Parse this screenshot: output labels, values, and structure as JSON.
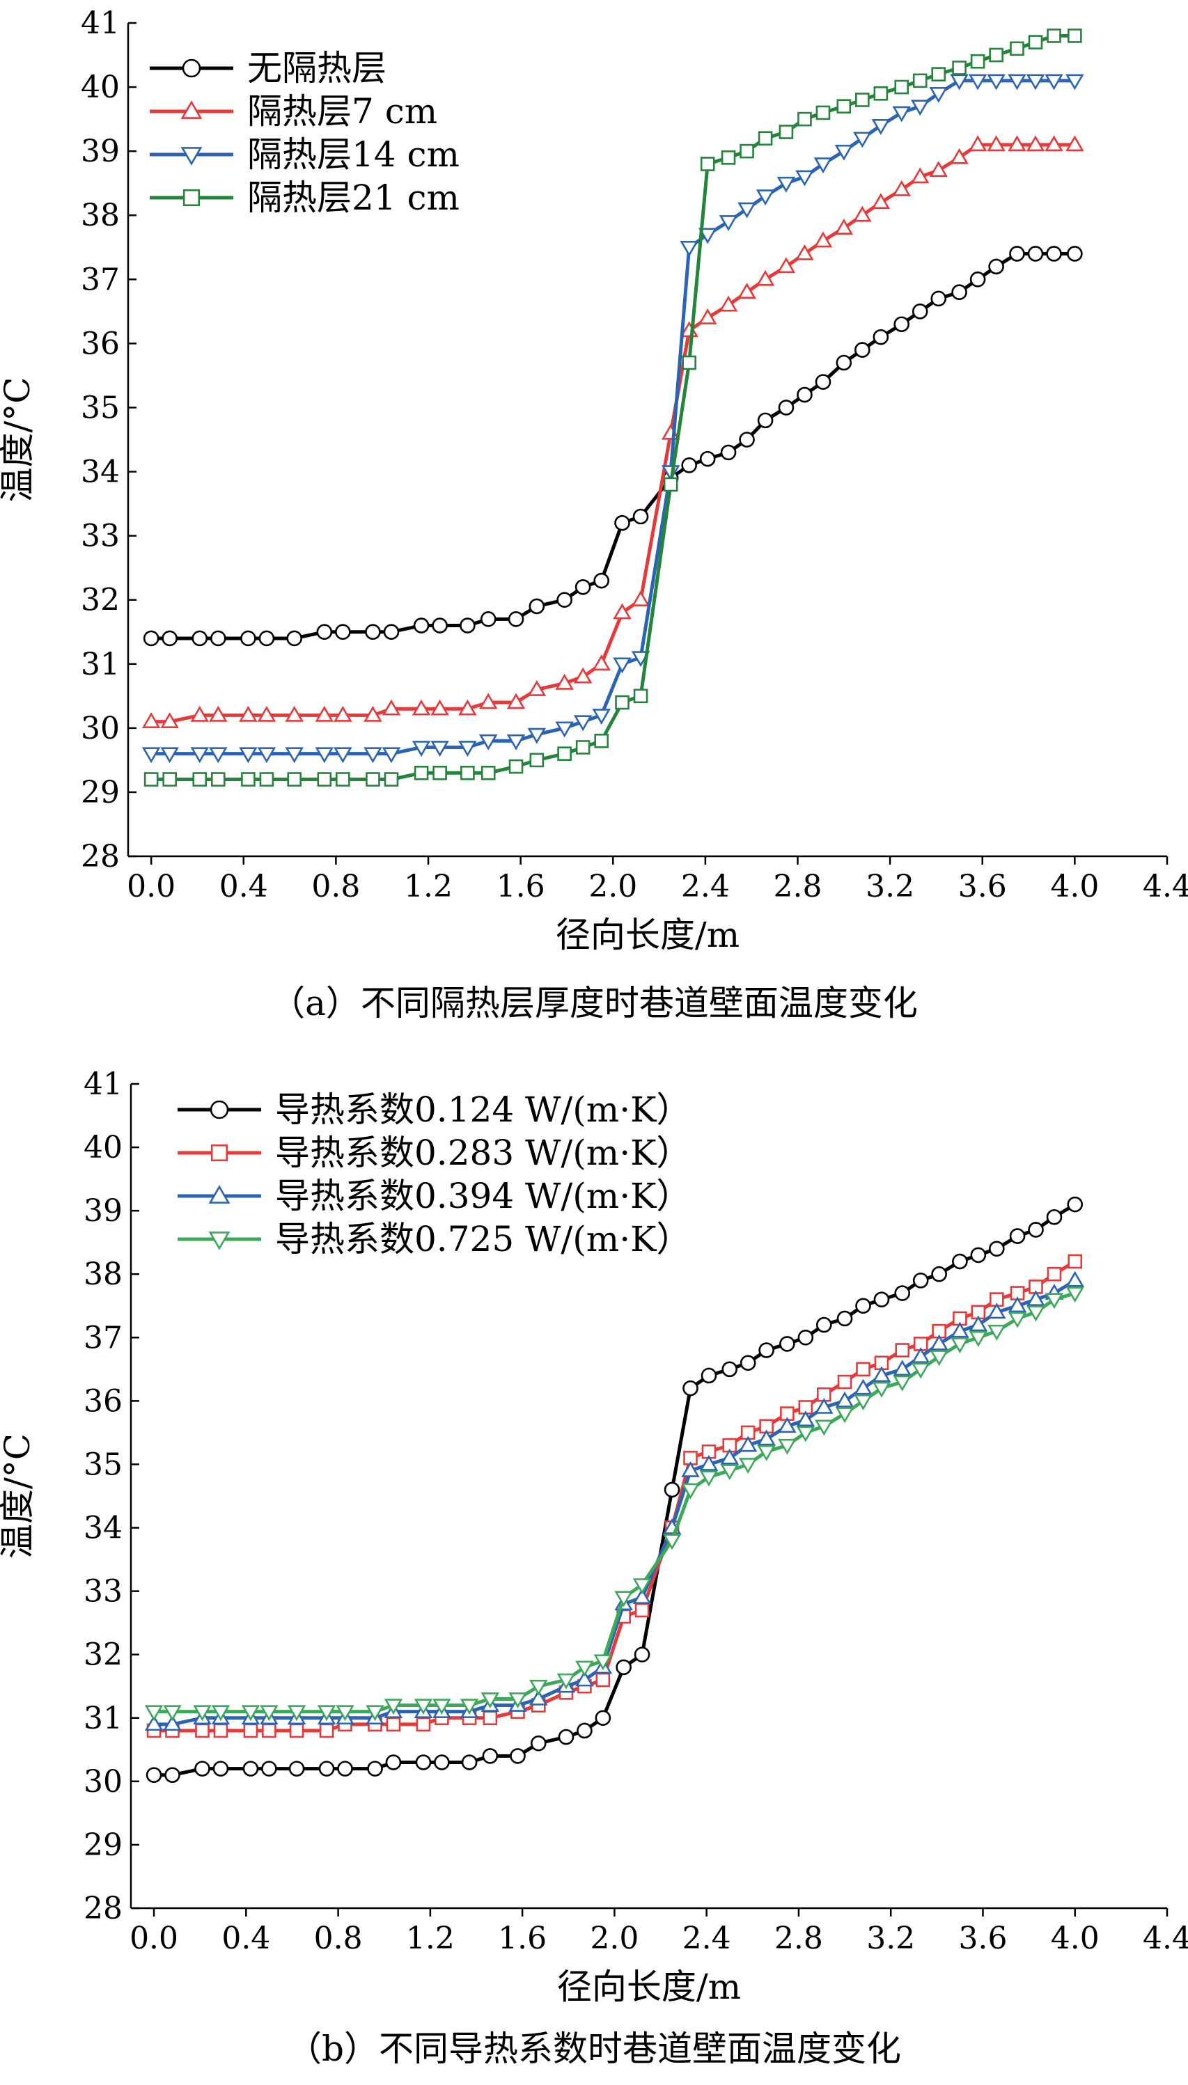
{
  "chart_data": [
    {
      "type": "line",
      "caption": "（a）不同隔热层厚度时巷道壁面温度变化",
      "xlabel": "径向长度/m",
      "ylabel": "温度/°C",
      "xlim": [
        -0.1,
        4.4
      ],
      "ylim": [
        28,
        41
      ],
      "xticks": [
        "0.0",
        "0.4",
        "0.8",
        "1.2",
        "1.6",
        "2.0",
        "2.4",
        "2.8",
        "3.2",
        "3.6",
        "4.0",
        "4.4"
      ],
      "yticks": [
        "28",
        "29",
        "30",
        "31",
        "32",
        "33",
        "34",
        "35",
        "36",
        "37",
        "38",
        "39",
        "40",
        "41"
      ],
      "legend_position": "top-left",
      "series": [
        {
          "name": "无隔热层",
          "color": "#000000",
          "marker": "circle",
          "x": [
            0.0,
            0.08,
            0.21,
            0.29,
            0.42,
            0.5,
            0.62,
            0.75,
            0.83,
            0.96,
            1.04,
            1.17,
            1.25,
            1.37,
            1.46,
            1.58,
            1.67,
            1.79,
            1.87,
            1.95,
            2.04,
            2.12,
            2.25,
            2.33,
            2.41,
            2.5,
            2.58,
            2.66,
            2.75,
            2.83,
            2.91,
            3.0,
            3.08,
            3.16,
            3.25,
            3.33,
            3.41,
            3.5,
            3.58,
            3.66,
            3.75,
            3.83,
            3.91,
            4.0
          ],
          "y": [
            31.4,
            31.4,
            31.4,
            31.4,
            31.4,
            31.4,
            31.4,
            31.5,
            31.5,
            31.5,
            31.5,
            31.6,
            31.6,
            31.6,
            31.7,
            31.7,
            31.9,
            32.0,
            32.2,
            32.3,
            33.2,
            33.3,
            33.9,
            34.1,
            34.2,
            34.3,
            34.5,
            34.8,
            35.0,
            35.2,
            35.4,
            35.7,
            35.9,
            36.1,
            36.3,
            36.5,
            36.7,
            36.8,
            37.0,
            37.2,
            37.4,
            37.4,
            37.4,
            37.4
          ]
        },
        {
          "name": "隔热层7 cm",
          "color": "#e53a3a",
          "marker": "triangle-up",
          "x": [
            0.0,
            0.08,
            0.21,
            0.29,
            0.42,
            0.5,
            0.62,
            0.75,
            0.83,
            0.96,
            1.04,
            1.17,
            1.25,
            1.37,
            1.46,
            1.58,
            1.67,
            1.79,
            1.87,
            1.95,
            2.04,
            2.12,
            2.25,
            2.33,
            2.41,
            2.5,
            2.58,
            2.66,
            2.75,
            2.83,
            2.91,
            3.0,
            3.08,
            3.16,
            3.25,
            3.33,
            3.41,
            3.5,
            3.58,
            3.66,
            3.75,
            3.83,
            3.91,
            4.0
          ],
          "y": [
            30.1,
            30.1,
            30.2,
            30.2,
            30.2,
            30.2,
            30.2,
            30.2,
            30.2,
            30.2,
            30.3,
            30.3,
            30.3,
            30.3,
            30.4,
            30.4,
            30.6,
            30.7,
            30.8,
            31.0,
            31.8,
            32.0,
            34.6,
            36.2,
            36.4,
            36.6,
            36.8,
            37.0,
            37.2,
            37.4,
            37.6,
            37.8,
            38.0,
            38.2,
            38.4,
            38.6,
            38.7,
            38.9,
            39.1,
            39.1,
            39.1,
            39.1,
            39.1,
            39.1
          ]
        },
        {
          "name": "隔热层14 cm",
          "color": "#2c64b4",
          "marker": "triangle-down",
          "x": [
            0.0,
            0.08,
            0.21,
            0.29,
            0.42,
            0.5,
            0.62,
            0.75,
            0.83,
            0.96,
            1.04,
            1.17,
            1.25,
            1.37,
            1.46,
            1.58,
            1.67,
            1.79,
            1.87,
            1.95,
            2.04,
            2.12,
            2.25,
            2.33,
            2.41,
            2.5,
            2.58,
            2.66,
            2.75,
            2.83,
            2.91,
            3.0,
            3.08,
            3.16,
            3.25,
            3.33,
            3.41,
            3.5,
            3.58,
            3.66,
            3.75,
            3.83,
            3.91,
            4.0
          ],
          "y": [
            29.6,
            29.6,
            29.6,
            29.6,
            29.6,
            29.6,
            29.6,
            29.6,
            29.6,
            29.6,
            29.6,
            29.7,
            29.7,
            29.7,
            29.8,
            29.8,
            29.9,
            30.0,
            30.1,
            30.2,
            31.0,
            31.1,
            34.0,
            37.5,
            37.7,
            37.9,
            38.1,
            38.3,
            38.5,
            38.6,
            38.8,
            39.0,
            39.2,
            39.4,
            39.6,
            39.7,
            39.9,
            40.1,
            40.1,
            40.1,
            40.1,
            40.1,
            40.1,
            40.1
          ]
        },
        {
          "name": "隔热层21 cm",
          "color": "#24843c",
          "marker": "square",
          "x": [
            0.0,
            0.08,
            0.21,
            0.29,
            0.42,
            0.5,
            0.62,
            0.75,
            0.83,
            0.96,
            1.04,
            1.17,
            1.25,
            1.37,
            1.46,
            1.58,
            1.67,
            1.79,
            1.87,
            1.95,
            2.04,
            2.12,
            2.25,
            2.33,
            2.41,
            2.5,
            2.58,
            2.66,
            2.75,
            2.83,
            2.91,
            3.0,
            3.08,
            3.16,
            3.25,
            3.33,
            3.41,
            3.5,
            3.58,
            3.66,
            3.75,
            3.83,
            3.91,
            4.0
          ],
          "y": [
            29.2,
            29.2,
            29.2,
            29.2,
            29.2,
            29.2,
            29.2,
            29.2,
            29.2,
            29.2,
            29.2,
            29.3,
            29.3,
            29.3,
            29.3,
            29.4,
            29.5,
            29.6,
            29.7,
            29.8,
            30.4,
            30.5,
            33.8,
            35.7,
            38.8,
            38.9,
            39.0,
            39.2,
            39.3,
            39.5,
            39.6,
            39.7,
            39.8,
            39.9,
            40.0,
            40.1,
            40.2,
            40.3,
            40.4,
            40.5,
            40.6,
            40.7,
            40.8,
            40.8
          ]
        }
      ]
    },
    {
      "type": "line",
      "caption": "（b）不同导热系数时巷道壁面温度变化",
      "xlabel": "径向长度/m",
      "ylabel": "温度/°C",
      "xlim": [
        -0.1,
        4.4
      ],
      "ylim": [
        28,
        41
      ],
      "xticks": [
        "0.0",
        "0.4",
        "0.8",
        "1.2",
        "1.6",
        "2.0",
        "2.4",
        "2.8",
        "3.2",
        "3.6",
        "4.0",
        "4.4"
      ],
      "yticks": [
        "28",
        "29",
        "30",
        "31",
        "32",
        "33",
        "34",
        "35",
        "36",
        "37",
        "38",
        "39",
        "40",
        "41"
      ],
      "legend_position": "top-left",
      "series": [
        {
          "name": "导热系数0.124 W/(m·K）",
          "color": "#000000",
          "marker": "circle",
          "x": [
            0.0,
            0.08,
            0.21,
            0.29,
            0.42,
            0.5,
            0.62,
            0.75,
            0.83,
            0.96,
            1.04,
            1.17,
            1.25,
            1.37,
            1.46,
            1.58,
            1.67,
            1.79,
            1.87,
            1.95,
            2.04,
            2.12,
            2.25,
            2.33,
            2.41,
            2.5,
            2.58,
            2.66,
            2.75,
            2.83,
            2.91,
            3.0,
            3.08,
            3.16,
            3.25,
            3.33,
            3.41,
            3.5,
            3.58,
            3.66,
            3.75,
            3.83,
            3.91,
            4.0
          ],
          "y": [
            30.1,
            30.1,
            30.2,
            30.2,
            30.2,
            30.2,
            30.2,
            30.2,
            30.2,
            30.2,
            30.3,
            30.3,
            30.3,
            30.3,
            30.4,
            30.4,
            30.6,
            30.7,
            30.8,
            31.0,
            31.8,
            32.0,
            34.6,
            36.2,
            36.4,
            36.5,
            36.6,
            36.8,
            36.9,
            37.0,
            37.2,
            37.3,
            37.5,
            37.6,
            37.7,
            37.9,
            38.0,
            38.2,
            38.3,
            38.4,
            38.6,
            38.7,
            38.9,
            39.1
          ]
        },
        {
          "name": "导热系数0.283 W/(m·K）",
          "color": "#e53a3a",
          "marker": "square",
          "x": [
            0.0,
            0.08,
            0.21,
            0.29,
            0.42,
            0.5,
            0.62,
            0.75,
            0.83,
            0.96,
            1.04,
            1.17,
            1.25,
            1.37,
            1.46,
            1.58,
            1.67,
            1.79,
            1.87,
            1.95,
            2.04,
            2.12,
            2.25,
            2.33,
            2.41,
            2.5,
            2.58,
            2.66,
            2.75,
            2.83,
            2.91,
            3.0,
            3.08,
            3.16,
            3.25,
            3.33,
            3.41,
            3.5,
            3.58,
            3.66,
            3.75,
            3.83,
            3.91,
            4.0
          ],
          "y": [
            30.8,
            30.8,
            30.8,
            30.8,
            30.8,
            30.8,
            30.8,
            30.8,
            30.9,
            30.9,
            30.9,
            30.9,
            31.0,
            31.0,
            31.0,
            31.1,
            31.2,
            31.4,
            31.5,
            31.6,
            32.6,
            32.7,
            34.0,
            35.1,
            35.2,
            35.3,
            35.5,
            35.6,
            35.8,
            35.9,
            36.1,
            36.3,
            36.5,
            36.6,
            36.8,
            36.9,
            37.1,
            37.3,
            37.4,
            37.6,
            37.7,
            37.8,
            38.0,
            38.2
          ]
        },
        {
          "name": "导热系数0.394 W/(m·K）",
          "color": "#2c64b4",
          "marker": "triangle-up",
          "x": [
            0.0,
            0.08,
            0.21,
            0.29,
            0.42,
            0.5,
            0.62,
            0.75,
            0.83,
            0.96,
            1.04,
            1.17,
            1.25,
            1.37,
            1.46,
            1.58,
            1.67,
            1.79,
            1.87,
            1.95,
            2.04,
            2.12,
            2.25,
            2.33,
            2.41,
            2.5,
            2.58,
            2.66,
            2.75,
            2.83,
            2.91,
            3.0,
            3.08,
            3.16,
            3.25,
            3.33,
            3.41,
            3.5,
            3.58,
            3.66,
            3.75,
            3.83,
            3.91,
            4.0
          ],
          "y": [
            30.9,
            30.9,
            31.0,
            31.0,
            31.0,
            31.0,
            31.0,
            31.0,
            31.0,
            31.0,
            31.1,
            31.1,
            31.1,
            31.1,
            31.2,
            31.2,
            31.3,
            31.5,
            31.6,
            31.8,
            32.8,
            32.9,
            34.0,
            34.9,
            35.0,
            35.1,
            35.3,
            35.4,
            35.6,
            35.7,
            35.9,
            36.0,
            36.2,
            36.4,
            36.5,
            36.7,
            36.9,
            37.1,
            37.2,
            37.4,
            37.5,
            37.6,
            37.7,
            37.9
          ]
        },
        {
          "name": "导热系数0.725 W/(m·K）",
          "color": "#3ea85a",
          "marker": "triangle-down",
          "x": [
            0.0,
            0.08,
            0.21,
            0.29,
            0.42,
            0.5,
            0.62,
            0.75,
            0.83,
            0.96,
            1.04,
            1.17,
            1.25,
            1.37,
            1.46,
            1.58,
            1.67,
            1.79,
            1.87,
            1.95,
            2.04,
            2.12,
            2.25,
            2.33,
            2.41,
            2.5,
            2.58,
            2.66,
            2.75,
            2.83,
            2.91,
            3.0,
            3.08,
            3.16,
            3.25,
            3.33,
            3.41,
            3.5,
            3.58,
            3.66,
            3.75,
            3.83,
            3.91,
            4.0
          ],
          "y": [
            31.1,
            31.1,
            31.1,
            31.1,
            31.1,
            31.1,
            31.1,
            31.1,
            31.1,
            31.1,
            31.2,
            31.2,
            31.2,
            31.2,
            31.3,
            31.3,
            31.5,
            31.6,
            31.8,
            31.9,
            32.9,
            33.1,
            33.8,
            34.6,
            34.8,
            34.9,
            35.0,
            35.2,
            35.3,
            35.5,
            35.6,
            35.8,
            36.0,
            36.2,
            36.3,
            36.5,
            36.7,
            36.9,
            37.0,
            37.1,
            37.3,
            37.4,
            37.6,
            37.7
          ]
        }
      ]
    }
  ]
}
